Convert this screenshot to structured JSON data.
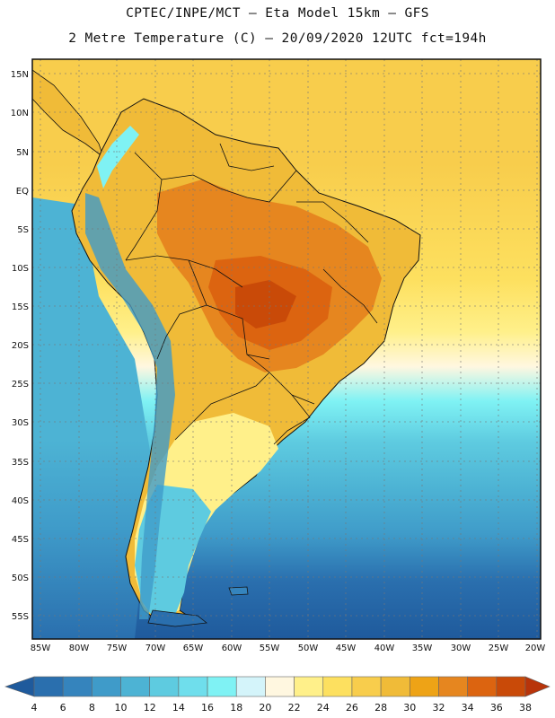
{
  "header": {
    "line1": "CPTEC/INPE/MCT –  Eta Model 15km – GFS",
    "line2": "2 Metre Temperature (C) – 20/09/2020 12UTC fct=194h"
  },
  "map": {
    "lat_labels": [
      "15N",
      "10N",
      "5N",
      "EQ",
      "5S",
      "10S",
      "15S",
      "20S",
      "25S",
      "30S",
      "35S",
      "40S",
      "45S",
      "50S",
      "55S"
    ],
    "lon_labels": [
      "85W",
      "80W",
      "75W",
      "70W",
      "65W",
      "60W",
      "55W",
      "50W",
      "45W",
      "40W",
      "35W",
      "30W",
      "25W",
      "20W"
    ]
  },
  "colorbar": {
    "ticks": [
      "4",
      "6",
      "8",
      "10",
      "12",
      "14",
      "16",
      "18",
      "20",
      "22",
      "24",
      "26",
      "28",
      "30",
      "32",
      "34",
      "36",
      "38"
    ],
    "colors": [
      "#1f5a9c",
      "#2a6fae",
      "#3584bd",
      "#3f9bc9",
      "#4db3d4",
      "#5ecbe0",
      "#6fdeec",
      "#7ff2f4",
      "#d4f4fa",
      "#fff7e0",
      "#fff08a",
      "#fde05f",
      "#f8cd4c",
      "#f0bb38",
      "#eea316",
      "#e6861f",
      "#dc6410",
      "#c94a08",
      "#b8340a"
    ]
  }
}
